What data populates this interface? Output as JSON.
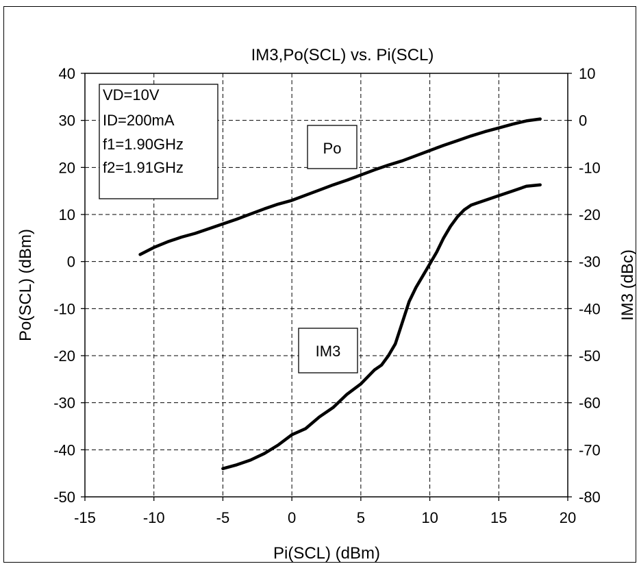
{
  "chart_data": {
    "type": "line",
    "title": "IM3,Po(SCL) vs. Pi(SCL)",
    "xlabel": "Pi(SCL) (dBm)",
    "ylabel": "Po(SCL) (dBm)",
    "y2label": "IM3 (dBc)",
    "xlim": [
      -15,
      20
    ],
    "ylim": [
      -50,
      40
    ],
    "y2lim": [
      -80,
      10
    ],
    "xticks": [
      -15,
      -10,
      -5,
      0,
      5,
      10,
      15,
      20
    ],
    "yticks": [
      -50,
      -40,
      -30,
      -20,
      -10,
      0,
      10,
      20,
      30,
      40
    ],
    "y2ticks": [
      -80,
      -70,
      -60,
      -50,
      -40,
      -30,
      -20,
      -10,
      0,
      10
    ],
    "grid": true,
    "series": [
      {
        "name": "Po",
        "axis": "left",
        "x": [
          -11,
          -10,
          -9,
          -8,
          -7,
          -6,
          -5,
          -4,
          -3,
          -2,
          -1,
          0,
          1,
          2,
          3,
          4,
          5,
          6,
          7,
          8,
          9,
          10,
          11,
          12,
          13,
          14,
          15,
          16,
          17,
          18
        ],
        "y": [
          1.5,
          3.0,
          4.2,
          5.2,
          6.0,
          7.0,
          8.0,
          9.0,
          10.1,
          11.2,
          12.2,
          13.0,
          14.1,
          15.2,
          16.3,
          17.3,
          18.4,
          19.5,
          20.5,
          21.4,
          22.5,
          23.6,
          24.7,
          25.7,
          26.7,
          27.6,
          28.4,
          29.2,
          29.9,
          30.3
        ]
      },
      {
        "name": "IM3",
        "axis": "right",
        "x": [
          -5,
          -4,
          -3,
          -2,
          -1,
          0,
          1,
          2,
          3,
          4,
          5,
          6,
          6.5,
          7,
          7.5,
          8,
          8.5,
          9,
          9.5,
          10,
          10.5,
          11,
          11.5,
          12,
          12.5,
          13,
          13.5,
          14,
          15,
          16,
          17,
          18
        ],
        "y": [
          -74.0,
          -73.2,
          -72.2,
          -70.8,
          -69.0,
          -66.8,
          -65.5,
          -63.0,
          -61.0,
          -58.2,
          -56.0,
          -53.0,
          -52.0,
          -50.0,
          -47.5,
          -43.0,
          -38.5,
          -35.5,
          -33.0,
          -30.5,
          -28.0,
          -25.0,
          -22.5,
          -20.5,
          -19.0,
          -18.0,
          -17.5,
          -17.0,
          -16.0,
          -15.0,
          -14.0,
          -13.7
        ]
      }
    ],
    "annotations": [
      {
        "text": "VD=10V\nID=200mA\nf1=1.90GHz\nf2=1.91GHz",
        "lines": [
          "VD=10V",
          "ID=200mA",
          "f1=1.90GHz",
          "f2=1.91GHz"
        ]
      },
      {
        "text": "Po"
      },
      {
        "text": "IM3"
      }
    ]
  }
}
